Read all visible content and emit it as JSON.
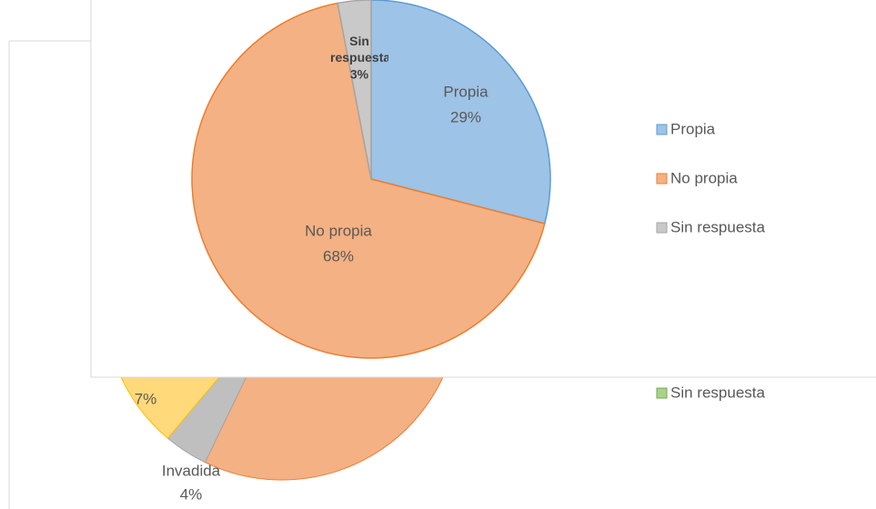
{
  "chart_data": [
    {
      "type": "pie",
      "categories": [
        null,
        "Invadida"
      ],
      "values": [
        7,
        4
      ],
      "value_labels": [
        "7%",
        "4%"
      ],
      "colors": [
        "#ffd97a",
        "#bfbfbf"
      ],
      "legend": {
        "position": "right",
        "items": [
          {
            "name": "Sin respuesta",
            "color": "#a9d18e"
          }
        ]
      }
    },
    {
      "type": "pie",
      "categories": [
        "Propia",
        "No propia",
        "Sin respuesta"
      ],
      "values": [
        29,
        68,
        3
      ],
      "value_labels": [
        "29%",
        "68%",
        "3%"
      ],
      "colors": [
        "#9dc3e6",
        "#f4b183",
        "#c9c9c9"
      ],
      "legend": {
        "position": "right"
      }
    }
  ]
}
